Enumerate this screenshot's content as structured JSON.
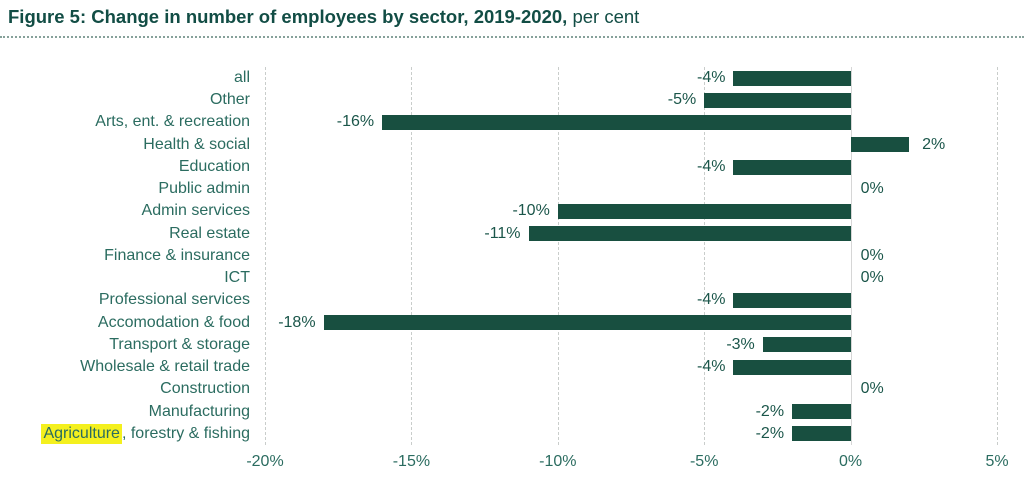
{
  "header": {
    "title_bold": "Figure 5: Change in number of employees by sector, 2019-2020,",
    "title_suffix": " per cent"
  },
  "colors": {
    "bar": "#184F40",
    "title": "#124D45",
    "category_text": "#2B6C60",
    "value_text": "#1B564A",
    "tick_text": "#2B6C60",
    "gridline": "#C9CDCB",
    "zero_line": "#D6D6D6",
    "highlight": "#F4F01E"
  },
  "chart_data": {
    "type": "bar",
    "orientation": "horizontal",
    "title": "Figure 5: Change in number of employees by sector, 2019-2020, per cent",
    "xlim": [
      -20,
      5
    ],
    "grid": "vertical-dashed",
    "legend_position": "none",
    "categories": [
      "all",
      "Other",
      "Arts, ent. & recreation",
      "Health & social",
      "Education",
      "Public admin",
      "Admin services",
      "Real estate",
      "Finance & insurance",
      "ICT",
      "Professional services",
      "Accomodation & food",
      "Transport & storage",
      "Wholesale & retail trade",
      "Construction",
      "Manufacturing",
      "Agriculture, forestry & fishing"
    ],
    "values": [
      -4,
      -5,
      -16,
      2,
      -4,
      0,
      -10,
      -11,
      0,
      0,
      -4,
      -18,
      -3,
      -4,
      0,
      -2,
      -2
    ],
    "value_labels": [
      "-4%",
      "-5%",
      "-16%",
      "2%",
      "-4%",
      "0%",
      "-10%",
      "-11%",
      "0%",
      "0%",
      "-4%",
      "-18%",
      "-3%",
      "-4%",
      "0%",
      "-2%",
      "-2%"
    ],
    "x_ticks": [
      {
        "value": -20,
        "label": "-20%"
      },
      {
        "value": -15,
        "label": "-15%"
      },
      {
        "value": -10,
        "label": "-10%"
      },
      {
        "value": -5,
        "label": "-5%"
      },
      {
        "value": 0,
        "label": "0%"
      },
      {
        "value": 5,
        "label": "5%"
      }
    ],
    "highlight": {
      "category_index": 16,
      "text": "Agriculture"
    }
  }
}
